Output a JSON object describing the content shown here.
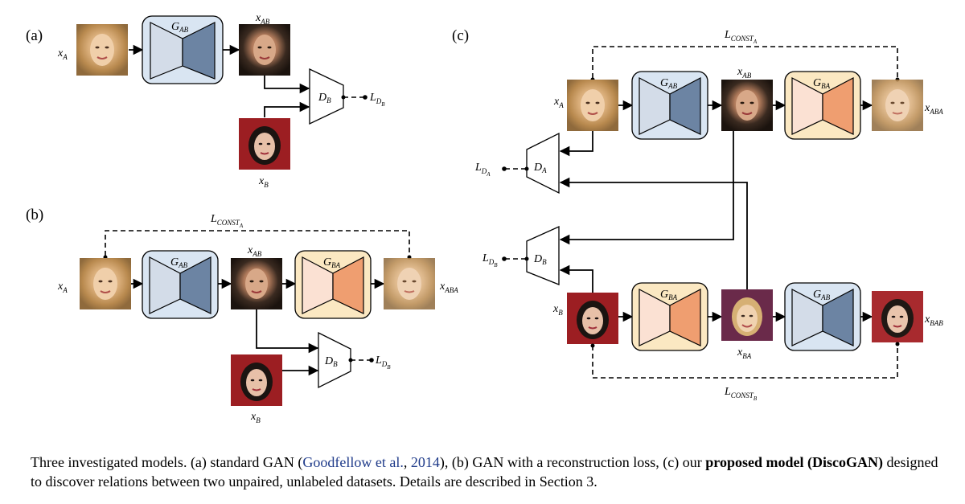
{
  "panels": {
    "a": "(a)",
    "b": "(b)",
    "c": "(c)"
  },
  "symbols": {
    "x": "x",
    "G": "G",
    "D": "D",
    "L": "L",
    "A": "A",
    "B": "B",
    "AB": "AB",
    "BA": "BA",
    "ABA": "ABA",
    "BAB": "BAB",
    "CONST": "CONST"
  },
  "images": {
    "face_a": "blonde-woman-photo",
    "face_ab": "dark-haired-woman-photo",
    "face_b": "dark-haired-woman-red-background-photo",
    "face_ba": "blonde-woman-red-background-photo"
  },
  "colors": {
    "gen_ab_box": "#d9e5f2",
    "gen_ab_encoder": "#d3dce8",
    "gen_ab_decoder": "#6c84a3",
    "gen_ba_box": "#fbe8c2",
    "gen_ba_encoder": "#fbe1d3",
    "gen_ba_decoder": "#ef9e70",
    "caption_link": "#1f3b8a"
  },
  "caption": {
    "part1": "Three investigated models. (a) standard GAN (",
    "citation": "Goodfellow et al.",
    "sep": ", ",
    "year": "2014",
    "part2": "), (b) GAN with a reconstruction loss, (c) our ",
    "bold": "proposed model (DiscoGAN)",
    "part3": " designed to discover relations between two unpaired, unlabeled datasets. Details are described in Section 3."
  }
}
